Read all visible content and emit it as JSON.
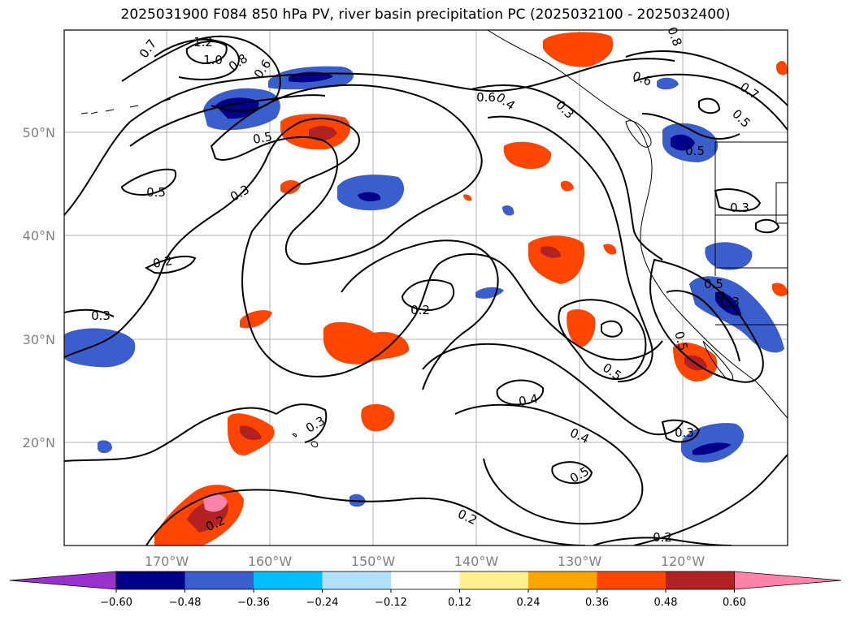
{
  "title": "2025031900 F084 850 hPa PV, river basin precipitation PC (2025032100 - 2025032400)",
  "lat_ticks": [
    "50°N",
    "40°N",
    "30°N",
    "20°N"
  ],
  "lon_ticks": [
    "170°W",
    "160°W",
    "150°W",
    "140°W",
    "130°W",
    "120°W"
  ],
  "contour_labels": [
    "1.2",
    "1.0",
    "0.8",
    "0.6",
    "0.7",
    "0.6",
    "0.4",
    "0.3",
    "0.5",
    "0.5",
    "0.3",
    "0.2",
    "0.3",
    "0.2",
    "0.5",
    "0.4",
    "0.4",
    "0.5",
    "0.3",
    "0.2",
    "0.2",
    "0.2",
    "0.3",
    "0.5",
    "0.5",
    "0.6",
    "0.7",
    "0.5",
    "0.8",
    "0.3",
    "0.5",
    "0.7",
    "0.3"
  ],
  "colorbar": {
    "ticks": [
      "−0.60",
      "−0.48",
      "−0.36",
      "−0.24",
      "−0.12",
      "0.12",
      "0.24",
      "0.36",
      "0.48",
      "0.60"
    ],
    "colors": [
      "#9932cc",
      "#00008b",
      "#3a5fcd",
      "#00bfff",
      "#b0e2ff",
      "#ffffff",
      "#fff08f",
      "#ffa500",
      "#ff4500",
      "#b22222",
      "#ff83a8"
    ]
  }
}
